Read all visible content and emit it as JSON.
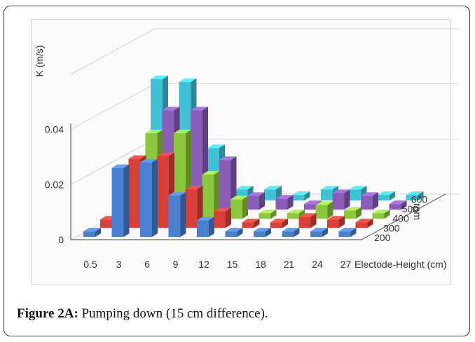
{
  "caption": {
    "label": "Figure 2A:",
    "text": " Pumping down (15 cm difference)."
  },
  "chart_data": {
    "type": "bar",
    "subtype": "3d-bar",
    "title": "",
    "xlabel": "Electode-Height (cm)",
    "ylabel": "K (m/s)",
    "zlabel": "rpm",
    "categories": [
      "0.5",
      "3",
      "6",
      "9",
      "12",
      "15",
      "18",
      "21",
      "24",
      "27"
    ],
    "yticks": [
      "0",
      "0.02",
      "0.04"
    ],
    "ylim": [
      0,
      0.06
    ],
    "series": [
      {
        "name": "200",
        "color": "#4a7fd0",
        "values": [
          0.002,
          0.025,
          0.027,
          0.015,
          0.006,
          0.002,
          0.002,
          0.002,
          0.002,
          0.002
        ]
      },
      {
        "name": "300",
        "color": "#d9403a",
        "values": [
          0.003,
          0.025,
          0.026,
          0.014,
          0.006,
          0.002,
          0.002,
          0.004,
          0.003,
          0.002
        ]
      },
      {
        "name": "400",
        "color": "#8dc63f",
        "values": [
          0.003,
          0.031,
          0.031,
          0.016,
          0.007,
          0.002,
          0.002,
          0.005,
          0.003,
          0.002
        ]
      },
      {
        "name": "500",
        "color": "#8a5cb8",
        "values": [
          0.006,
          0.036,
          0.036,
          0.018,
          0.005,
          0.004,
          0.002,
          0.006,
          0.005,
          0.002
        ]
      },
      {
        "name": "600",
        "color": "#3fc1d6",
        "values": [
          0.044,
          0.043,
          0.019,
          0.004,
          0.004,
          0.002,
          0.004,
          0.004,
          0.002,
          0.002
        ]
      }
    ],
    "legend": "none",
    "grid": true
  }
}
